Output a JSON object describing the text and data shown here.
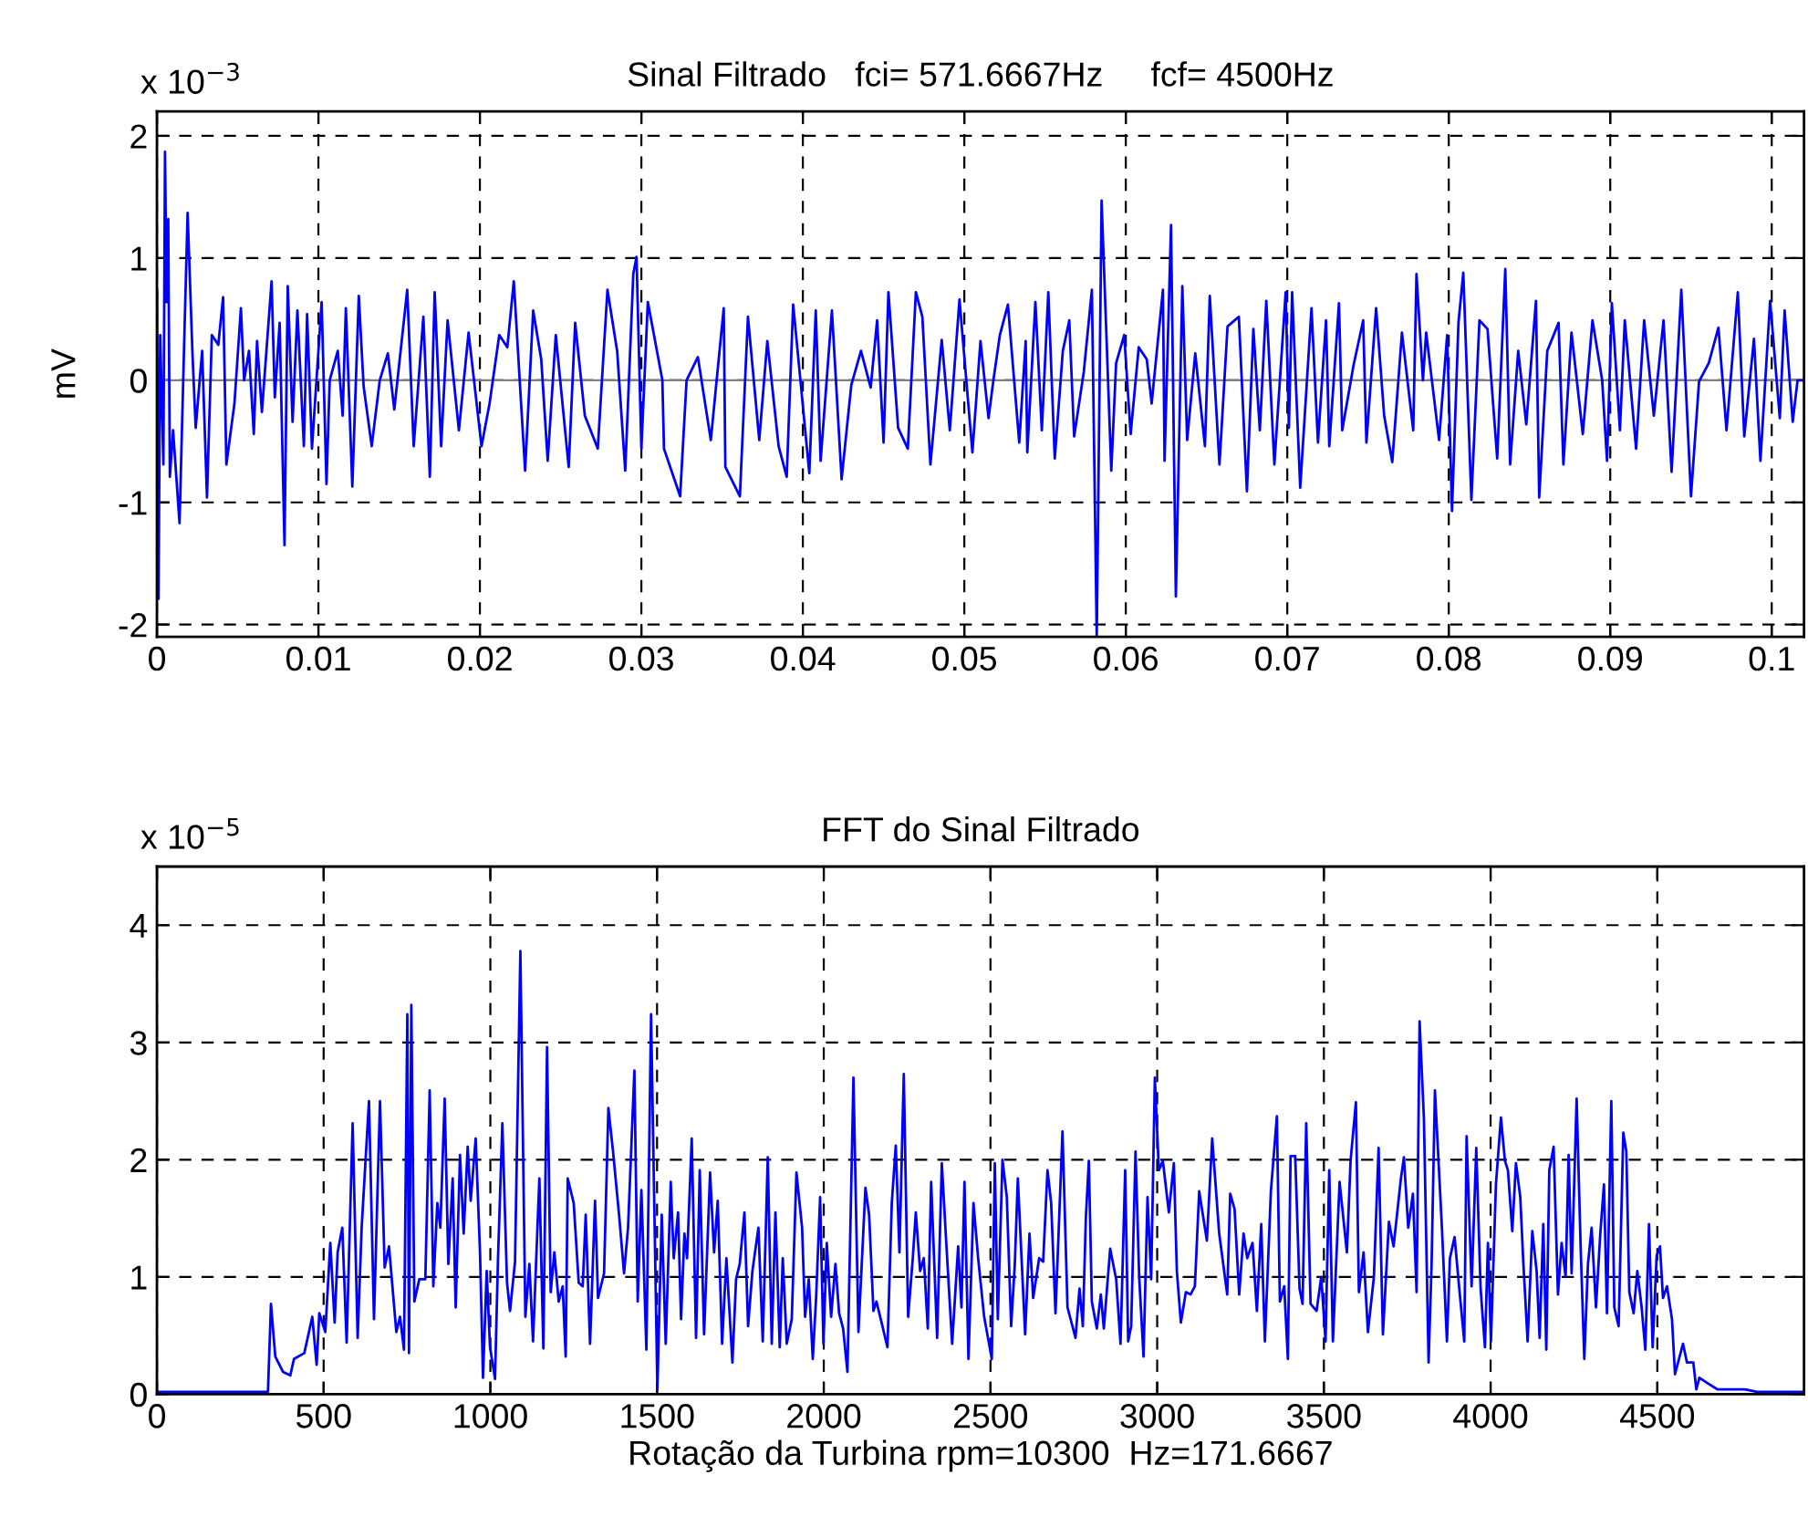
{
  "chart_data": [
    {
      "type": "line",
      "title": "Sinal Filtrado   fci= 571.6667Hz     fcf= 4500Hz",
      "ylabel": "mV",
      "annotations": [
        "x 10$^{−3}$"
      ],
      "x": [
        0,
        0.0001,
        0.0002,
        0.0004,
        0.0005,
        0.0006,
        0.0007,
        0.0008,
        0.001,
        0.0014,
        0.0017,
        0.0019,
        0.0022,
        0.0024,
        0.0028,
        0.0031,
        0.0034,
        0.0038,
        0.0041,
        0.0043,
        0.0048,
        0.0052,
        0.0054,
        0.0057,
        0.006,
        0.0062,
        0.0065,
        0.0071,
        0.0073,
        0.0076,
        0.0079,
        0.0081,
        0.0084,
        0.0087,
        0.0091,
        0.0093,
        0.0096,
        0.0102,
        0.0105,
        0.0107,
        0.0112,
        0.0115,
        0.0117,
        0.0121,
        0.0125,
        0.0128,
        0.0133,
        0.0138,
        0.0143,
        0.0147,
        0.0155,
        0.0159,
        0.0165,
        0.0169,
        0.0172,
        0.0176,
        0.018,
        0.0187,
        0.0193,
        0.0201,
        0.0206,
        0.0212,
        0.0217,
        0.0221,
        0.0228,
        0.0233,
        0.0238,
        0.0242,
        0.0247,
        0.0255,
        0.0259,
        0.0265,
        0.0273,
        0.0279,
        0.0285,
        0.029,
        0.0295,
        0.0297,
        0.03,
        0.0304,
        0.0313,
        0.0314,
        0.0324,
        0.0328,
        0.0335,
        0.0343,
        0.0351,
        0.0352,
        0.0361,
        0.0366,
        0.0373,
        0.0378,
        0.0385,
        0.039,
        0.0394,
        0.0404,
        0.0408,
        0.0411,
        0.0418,
        0.0424,
        0.043,
        0.0436,
        0.0442,
        0.0446,
        0.045,
        0.0453,
        0.0459,
        0.0465,
        0.047,
        0.0474,
        0.0479,
        0.0486,
        0.0491,
        0.0497,
        0.0505,
        0.051,
        0.0515,
        0.0518,
        0.0522,
        0.0527,
        0.0534,
        0.0538,
        0.0539,
        0.0544,
        0.0548,
        0.0552,
        0.0556,
        0.0561,
        0.0565,
        0.0568,
        0.0574,
        0.0579,
        0.0582,
        0.0585,
        0.0591,
        0.0594,
        0.0599,
        0.0603,
        0.0608,
        0.0613,
        0.0616,
        0.0623,
        0.0624,
        0.0628,
        0.0631,
        0.0635,
        0.0638,
        0.0643,
        0.0649,
        0.0652,
        0.0658,
        0.0663,
        0.067,
        0.0675,
        0.0679,
        0.0683,
        0.0687,
        0.0692,
        0.0699,
        0.0701,
        0.0703,
        0.0708,
        0.0715,
        0.0719,
        0.0724,
        0.0726,
        0.0732,
        0.0734,
        0.0741,
        0.0747,
        0.0749,
        0.0755,
        0.076,
        0.0765,
        0.0771,
        0.0778,
        0.078,
        0.0784,
        0.0786,
        0.0794,
        0.0799,
        0.0802,
        0.0806,
        0.0809,
        0.0814,
        0.0819,
        0.0824,
        0.083,
        0.0835,
        0.0838,
        0.0843,
        0.0848,
        0.0854,
        0.0856,
        0.0861,
        0.0868,
        0.0871,
        0.0876,
        0.0883,
        0.0889,
        0.0895,
        0.0898,
        0.0901,
        0.0906,
        0.0909,
        0.0916,
        0.0921,
        0.0927,
        0.0933,
        0.0938,
        0.0944,
        0.095,
        0.0955,
        0.0961,
        0.0967,
        0.0972,
        0.0979,
        0.0983,
        0.0989,
        0.0993,
        0.0999,
        0.1005,
        0.1008,
        0.1013,
        0.1016,
        0.102
      ],
      "series": [
        {
          "color": "#0000ff",
          "values": [
            0.74,
            -1.79,
            0.37,
            -0.69,
            1.87,
            0.64,
            1.32,
            -0.79,
            -0.41,
            -1.17,
            0.37,
            1.37,
            0.22,
            -0.39,
            0.24,
            -0.96,
            0.37,
            0.29,
            0.68,
            -0.69,
            -0.19,
            0.59,
            0,
            0.24,
            -0.44,
            0.32,
            -0.26,
            0.81,
            -0.14,
            0.47,
            -1.35,
            0.77,
            -0.34,
            0.57,
            -0.54,
            0.54,
            -0.56,
            0.64,
            -0.85,
            0,
            0.24,
            -0.29,
            0.59,
            -0.87,
            0.69,
            -0.05,
            -0.54,
            0,
            0.22,
            -0.24,
            0.74,
            -0.54,
            0.52,
            -0.79,
            0.72,
            -0.54,
            0.49,
            -0.41,
            0.39,
            -0.54,
            -0.19,
            0.37,
            0.27,
            0.81,
            -0.74,
            0.57,
            0.17,
            -0.66,
            0.37,
            -0.71,
            0.47,
            -0.29,
            -0.56,
            0.74,
            0.24,
            -0.74,
            0.87,
            1.01,
            -0.56,
            0.64,
            0,
            -0.56,
            -0.95,
            0,
            0.19,
            -0.49,
            0.59,
            -0.71,
            -0.95,
            0.52,
            -0.49,
            0.32,
            -0.54,
            -0.79,
            0.62,
            -0.76,
            0.57,
            -0.66,
            0.57,
            -0.81,
            -0.04,
            0.24,
            -0.06,
            0.49,
            -0.51,
            0.72,
            -0.39,
            -0.56,
            0.72,
            0.52,
            -0.69,
            0.33,
            -0.41,
            0.66,
            -0.59,
            0.32,
            -0.31,
            0,
            0.37,
            0.62,
            -0.51,
            0.32,
            -0.59,
            0.64,
            -0.41,
            0.72,
            -0.64,
            0.24,
            0.49,
            -0.46,
            0.07,
            0.74,
            -2.1,
            1.47,
            -0.74,
            0.14,
            0.37,
            -0.44,
            0.27,
            0.17,
            -0.19,
            0.74,
            -0.66,
            1.27,
            -1.77,
            0.77,
            -0.49,
            0.22,
            -0.54,
            0.69,
            -0.69,
            0.44,
            0.52,
            -0.91,
            0.42,
            -0.41,
            0.65,
            -0.69,
            0.72,
            -0.39,
            0.72,
            -0.88,
            0.59,
            -0.51,
            0.49,
            -0.54,
            0.63,
            -0.41,
            0.12,
            0.49,
            -0.51,
            0.59,
            -0.29,
            -0.67,
            0.39,
            -0.41,
            0.87,
            0,
            0.39,
            -0.49,
            0.37,
            -1.07,
            0.47,
            0.88,
            -0.98,
            0.49,
            0.42,
            -0.64,
            0.91,
            -0.69,
            0.24,
            -0.36,
            0.65,
            -0.96,
            0.24,
            0.47,
            -0.69,
            0.39,
            -0.44,
            0.49,
            0,
            -0.66,
            0.63,
            -0.41,
            0.49,
            -0.56,
            0.49,
            -0.29,
            0.49,
            -0.75,
            0.74,
            -0.95,
            -0.01,
            0.14,
            0.43,
            -0.41,
            0.72,
            -0.46,
            0.34,
            -0.66,
            0.65,
            -0.31,
            0.57,
            -0.34,
            0,
            0
          ]
        }
      ],
      "xlim": [
        0,
        0.102
      ],
      "ylim": [
        -2.1,
        2.2
      ],
      "xticks": [
        0,
        0.01,
        0.02,
        0.03,
        0.04,
        0.05,
        0.06,
        0.07,
        0.08,
        0.09,
        0.1
      ],
      "yticks": [
        -2,
        -1,
        0,
        1,
        2
      ],
      "ref_lines": [
        {
          "axis": "y",
          "value": 0,
          "color": "#808080",
          "line_style": "solid"
        }
      ],
      "grid": true
    },
    {
      "type": "line",
      "title": "FFT do Sinal Filtrado",
      "xlabel": "Rotação da Turbina rpm=10300  Hz=171.6667",
      "annotations": [
        "x 10$^{−5}$"
      ],
      "x": [
        0,
        333,
        342,
        355,
        378,
        400,
        411,
        442,
        466,
        479,
        487,
        505,
        520,
        533,
        542,
        556,
        569,
        587,
        602,
        614,
        636,
        651,
        669,
        683,
        696,
        718,
        729,
        741,
        751,
        756,
        763,
        772,
        787,
        805,
        818,
        829,
        841,
        850,
        863,
        874,
        887,
        896,
        909,
        920,
        932,
        941,
        956,
        969,
        978,
        989,
        999,
        1014,
        1023,
        1036,
        1050,
        1059,
        1074,
        1090,
        1105,
        1117,
        1128,
        1147,
        1159,
        1170,
        1181,
        1192,
        1205,
        1217,
        1226,
        1232,
        1250,
        1265,
        1277,
        1286,
        1299,
        1314,
        1323,
        1341,
        1354,
        1368,
        1386,
        1401,
        1413,
        1432,
        1442,
        1453,
        1468,
        1482,
        1501,
        1514,
        1526,
        1541,
        1550,
        1563,
        1572,
        1582,
        1590,
        1604,
        1617,
        1628,
        1641,
        1659,
        1671,
        1682,
        1695,
        1708,
        1726,
        1737,
        1748,
        1762,
        1773,
        1786,
        1804,
        1817,
        1832,
        1844,
        1855,
        1868,
        1877,
        1889,
        1904,
        1918,
        1935,
        1944,
        1955,
        1967,
        1977,
        1989,
        1999,
        2009,
        2022,
        2035,
        2046,
        2058,
        2071,
        2089,
        2104,
        2125,
        2136,
        2149,
        2158,
        2176,
        2191,
        2204,
        2216,
        2227,
        2240,
        2253,
        2267,
        2276,
        2289,
        2300,
        2312,
        2322,
        2340,
        2354,
        2367,
        2385,
        2403,
        2413,
        2422,
        2434,
        2449,
        2463,
        2481,
        2504,
        2513,
        2522,
        2536,
        2549,
        2562,
        2573,
        2582,
        2595,
        2604,
        2617,
        2628,
        2646,
        2658,
        2671,
        2682,
        2695,
        2716,
        2731,
        2755,
        2767,
        2777,
        2786,
        2795,
        2804,
        2819,
        2831,
        2840,
        2859,
        2877,
        2890,
        2904,
        2913,
        2922,
        2935,
        2946,
        2959,
        2971,
        2982,
        2993,
        3005,
        3017,
        3035,
        3050,
        3059,
        3071,
        3086,
        3100,
        3113,
        3126,
        3149,
        3165,
        3186,
        3210,
        3219,
        3232,
        3246,
        3259,
        3270,
        3286,
        3299,
        3312,
        3323,
        3341,
        3359,
        3368,
        3381,
        3392,
        3400,
        3414,
        3427,
        3436,
        3447,
        3460,
        3478,
        3492,
        3505,
        3516,
        3527,
        3547,
        3569,
        3580,
        3596,
        3605,
        3619,
        3632,
        3650,
        3664,
        3677,
        3695,
        3709,
        3731,
        3740,
        3753,
        3767,
        3778,
        3787,
        3800,
        3814,
        3823,
        3833,
        3854,
        3869,
        3878,
        3892,
        3906,
        3921,
        3928,
        3943,
        3957,
        3970,
        3983,
        3992,
        4001,
        4016,
        4031,
        4043,
        4052,
        4065,
        4076,
        4089,
        4098,
        4111,
        4125,
        4138,
        4147,
        4158,
        4167,
        4176,
        4189,
        4202,
        4213,
        4225,
        4234,
        4243,
        4258,
        4270,
        4281,
        4292,
        4303,
        4316,
        4329,
        4340,
        4349,
        4362,
        4371,
        4384,
        4398,
        4407,
        4416,
        4429,
        4440,
        4453,
        4464,
        4475,
        4486,
        4498,
        4508,
        4517,
        4529,
        4544,
        4553,
        4577,
        4589,
        4608,
        4617,
        4626,
        4653,
        4681,
        4708,
        4763,
        4799,
        4940
      ],
      "series": [
        {
          "color": "#0000ff",
          "values": [
            0.02,
            0.02,
            0.77,
            0.32,
            0.19,
            0.16,
            0.3,
            0.35,
            0.66,
            0.25,
            0.69,
            0.53,
            1.29,
            0.61,
            1.21,
            1.42,
            0.44,
            2.31,
            0.48,
            1.42,
            2.5,
            0.64,
            2.5,
            1.08,
            1.26,
            0.53,
            0.66,
            0.38,
            3.24,
            0.35,
            3.32,
            0.79,
            0.98,
            0.98,
            2.59,
            0.92,
            1.63,
            1.42,
            2.52,
            1.11,
            1.84,
            0.74,
            2.04,
            1.37,
            2.11,
            1.65,
            2.18,
            1.21,
            0.14,
            1.05,
            0.4,
            0.13,
            1.16,
            2.31,
            0.95,
            0.71,
            1.13,
            3.78,
            0.66,
            1.11,
            0.45,
            1.84,
            0.39,
            2.96,
            0.87,
            1.21,
            0.79,
            0.92,
            0.32,
            1.84,
            1.63,
            0.95,
            0.92,
            1.53,
            0.43,
            1.65,
            0.82,
            1.03,
            2.44,
            2.07,
            1.53,
            1.03,
            1.42,
            2.76,
            0.79,
            1.74,
            0.38,
            3.24,
            0.04,
            1.53,
            0.43,
            1.81,
            1.16,
            1.55,
            0.64,
            1.37,
            1.16,
            2.18,
            0.48,
            1.91,
            0.51,
            1.89,
            1.21,
            1.65,
            0.43,
            1.16,
            0.27,
            0.98,
            1.11,
            1.55,
            0.58,
            1.05,
            1.42,
            0.45,
            2.02,
            0.43,
            1.55,
            0.4,
            1.16,
            0.43,
            0.64,
            1.89,
            1.42,
            0.66,
            0.98,
            0.3,
            0.82,
            1.68,
            0.43,
            1.29,
            0.66,
            1.11,
            0.69,
            0.56,
            0.19,
            2.7,
            0.53,
            1.76,
            1.53,
            0.71,
            0.79,
            0.58,
            0.4,
            1.63,
            2.12,
            1.21,
            2.73,
            0.66,
            1.16,
            1.55,
            1.05,
            1.16,
            0.56,
            1.81,
            0.48,
            1.97,
            1.31,
            0.43,
            1.26,
            0.74,
            1.81,
            0.3,
            1.63,
            1.16,
            0.66,
            0.3,
            1.97,
            0.64,
            2.0,
            1.68,
            0.58,
            1.11,
            1.84,
            1.05,
            0.51,
            1.37,
            0.82,
            1.16,
            1.13,
            1.91,
            1.63,
            0.69,
            2.24,
            0.74,
            0.48,
            0.9,
            0.58,
            1.5,
            1.99,
            0.79,
            0.56,
            0.85,
            0.56,
            1.24,
            0.98,
            0.43,
            1.91,
            0.45,
            0.58,
            2.07,
            1.0,
            0.32,
            1.68,
            0.98,
            2.7,
            1.91,
            1.99,
            1.55,
            1.97,
            1.05,
            0.61,
            0.87,
            0.85,
            0.92,
            1.73,
            1.31,
            2.18,
            1.37,
            0.85,
            1.71,
            1.58,
            0.85,
            1.37,
            1.16,
            1.29,
            0.71,
            1.45,
            0.45,
            1.73,
            2.37,
            0.79,
            0.92,
            0.3,
            2.03,
            2.03,
            0.9,
            0.77,
            2.31,
            0.77,
            0.71,
            1.0,
            0.45,
            1.91,
            0.45,
            1.81,
            1.21,
            1.99,
            2.49,
            0.87,
            1.21,
            0.53,
            1.0,
            2.1,
            0.51,
            1.47,
            1.26,
            1.84,
            2.02,
            1.42,
            1.71,
            0.87,
            3.18,
            2.35,
            0.27,
            1.11,
            2.59,
            1.42,
            0.45,
            1.16,
            1.34,
            0.9,
            0.45,
            2.2,
            0.92,
            2.1,
            0.9,
            0.4,
            1.29,
            0.45,
            1.79,
            2.36,
            1.99,
            1.91,
            1.39,
            1.97,
            1.68,
            1.13,
            0.45,
            1.39,
            1.05,
            0.48,
            1.45,
            0.38,
            1.91,
            2.11,
            0.85,
            1.29,
            1.0,
            2.04,
            1.03,
            2.52,
            1.26,
            0.3,
            1.11,
            1.42,
            0.74,
            1.37,
            1.79,
            0.69,
            2.5,
            0.74,
            0.58,
            2.23,
            2.07,
            0.87,
            0.69,
            1.05,
            0.74,
            0.38,
            1.45,
            0.4,
            1.18,
            1.26,
            0.82,
            0.92,
            0.64,
            0.17,
            0.43,
            0.27,
            0.27,
            0.04,
            0.14,
            0.09,
            0.04,
            0.04,
            0.04,
            0.02,
            0.02
          ]
        }
      ],
      "xlim": [
        0,
        4940
      ],
      "ylim": [
        0,
        4.5
      ],
      "xticks": [
        0,
        500,
        1000,
        1500,
        2000,
        2500,
        3000,
        3500,
        4000,
        4500
      ],
      "yticks": [
        0,
        1,
        2,
        3,
        4
      ],
      "grid": true
    }
  ]
}
